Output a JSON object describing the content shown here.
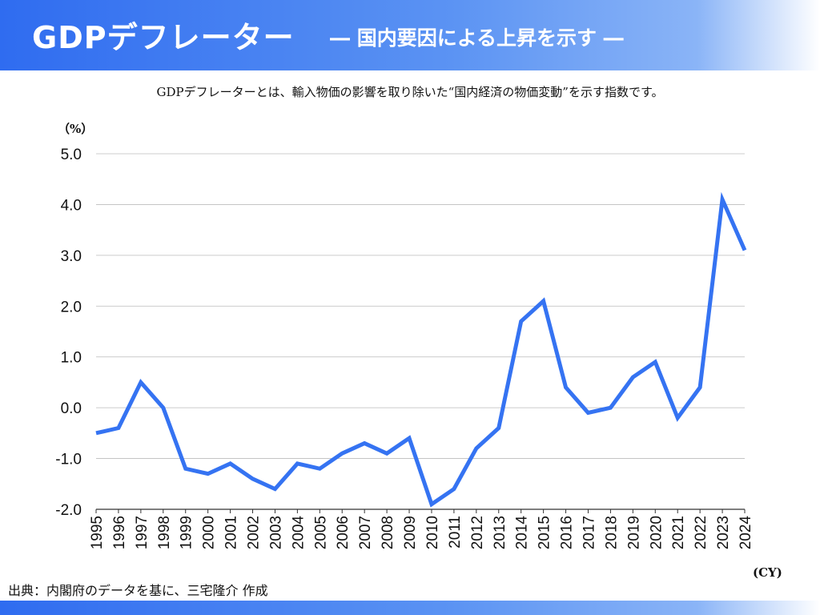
{
  "header": {
    "title": "GDPデフレーター",
    "subtitle": "― 国内要因による上昇を示す ―"
  },
  "description": "GDPデフレーターとは、輸入物価の影響を取り除いた“国内経済の物価変動”を示す指数です。",
  "source": "出典：内閣府のデータを基に、三宅隆介 作成",
  "colors": {
    "line": "#3573f2",
    "header_gradient_start": "#2f6cf0",
    "grid": "#bbbbbb"
  },
  "chart_data": {
    "type": "line",
    "ylabel": "（%）",
    "xlabel": "(CY)",
    "ylim": [
      -2.0,
      5.0
    ],
    "yticks": [
      "5.0",
      "4.0",
      "3.0",
      "2.0",
      "1.0",
      "0.0",
      "-1.0",
      "-2.0"
    ],
    "grid": "horizontal",
    "x": [
      "1995",
      "1996",
      "1997",
      "1998",
      "1999",
      "2000",
      "2001",
      "2002",
      "2003",
      "2004",
      "2005",
      "2006",
      "2007",
      "2008",
      "2009",
      "2010",
      "2011",
      "2012",
      "2013",
      "2014",
      "2015",
      "2016",
      "2017",
      "2018",
      "2019",
      "2020",
      "2021",
      "2022",
      "2023",
      "2024"
    ],
    "values": [
      -0.5,
      -0.4,
      0.5,
      0.0,
      -1.2,
      -1.3,
      -1.1,
      -1.4,
      -1.6,
      -1.1,
      -1.2,
      -0.9,
      -0.7,
      -0.9,
      -0.6,
      -1.9,
      -1.6,
      -0.8,
      -0.4,
      1.7,
      2.1,
      0.4,
      -0.1,
      0.0,
      0.6,
      0.9,
      -0.2,
      0.4,
      4.1,
      3.1
    ]
  }
}
